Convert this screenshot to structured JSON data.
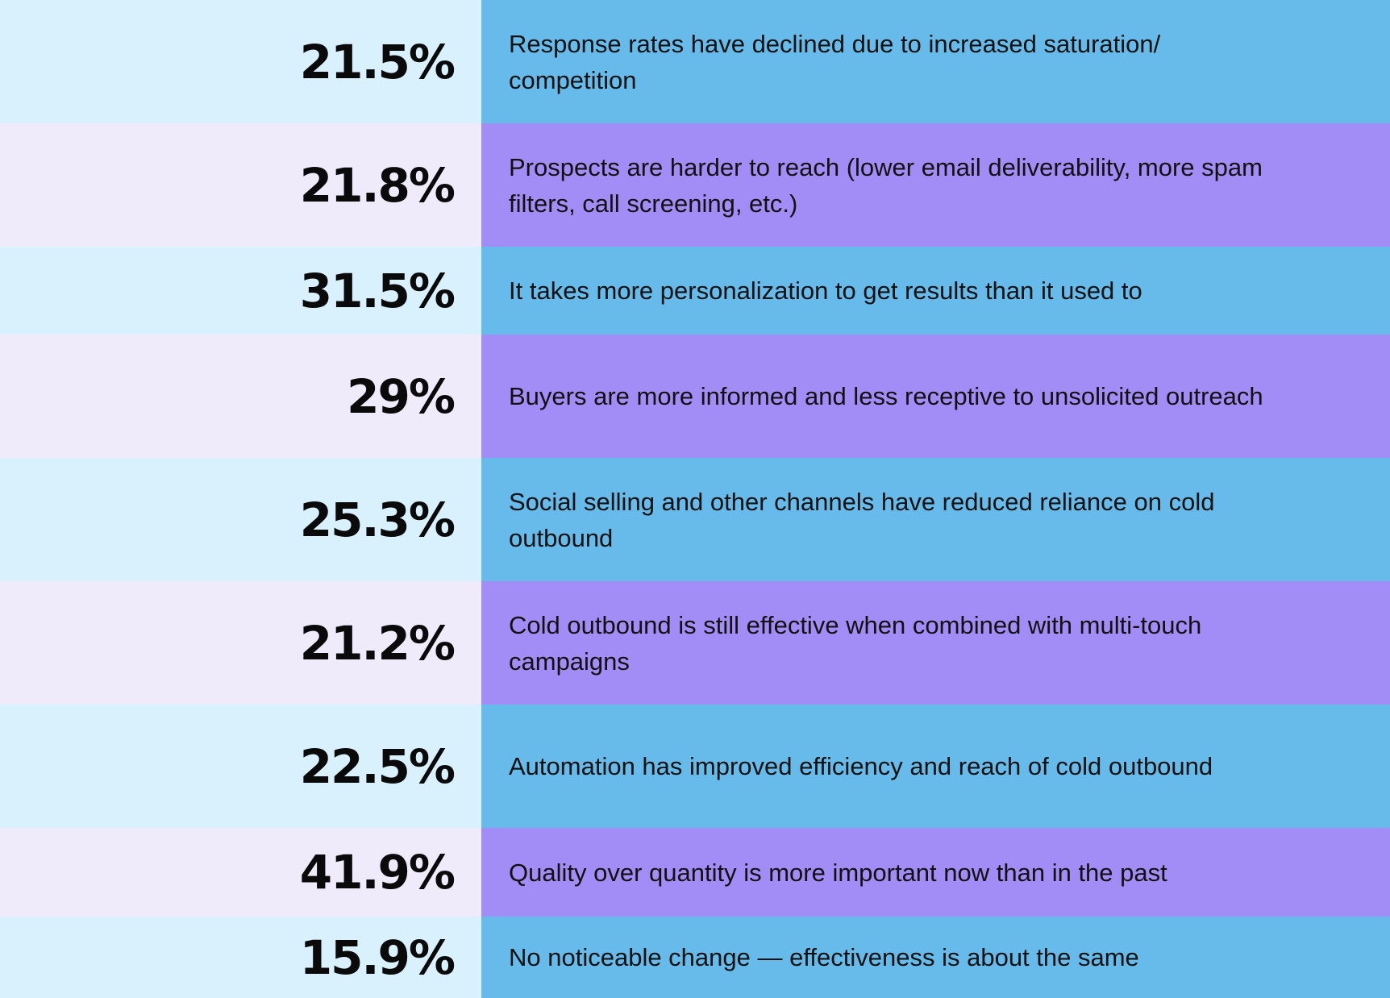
{
  "colors": {
    "pct_bg_blue": "#d9f0fd",
    "pct_bg_lavender": "#efebfb",
    "text_bg_blue": "#67bbea",
    "text_bg_purple": "#a28cf6"
  },
  "chart_data": {
    "type": "table",
    "rows": [
      {
        "value": 21.5,
        "label": "21.5%",
        "text": "Response rates have declined due to increased saturation/ competition"
      },
      {
        "value": 21.8,
        "label": "21.8%",
        "text": "Prospects are harder to reach (lower email deliverability, more spam filters, call screening, etc.)"
      },
      {
        "value": 31.5,
        "label": "31.5%",
        "text": "It takes more personalization to get results than it used to"
      },
      {
        "value": 29,
        "label": "29%",
        "text": "Buyers are more informed and less receptive to unsolicited outreach"
      },
      {
        "value": 25.3,
        "label": "25.3%",
        "text": "Social selling and other channels have reduced reliance on cold outbound"
      },
      {
        "value": 21.2,
        "label": "21.2%",
        "text": "Cold outbound is still effective when combined with multi-touch campaigns"
      },
      {
        "value": 22.5,
        "label": "22.5%",
        "text": "Automation has improved efficiency and reach of cold outbound"
      },
      {
        "value": 41.9,
        "label": "41.9%",
        "text": "Quality over quantity is more important now than in the past"
      },
      {
        "value": 15.9,
        "label": "15.9%",
        "text": "No noticeable change — effectiveness is about the same"
      }
    ]
  }
}
